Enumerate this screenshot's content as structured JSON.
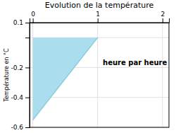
{
  "chart_data": {
    "type": "area",
    "title": "Evolution de la température",
    "ylabel": "Température en °C",
    "annotation": {
      "text": "heure par heure",
      "x": 1.08,
      "y": -0.17
    },
    "series": [
      {
        "type": "area",
        "color": "#aaddee",
        "x": [
          0,
          0,
          1,
          0
        ],
        "values": [
          0,
          -0.55,
          0,
          0
        ]
      },
      {
        "type": "line",
        "color": "#88ccdd",
        "x": [
          0,
          1
        ],
        "values": [
          -0.55,
          0
        ]
      }
    ],
    "xlim": [
      -0.05,
      2.1
    ],
    "ylim": [
      -0.6,
      0.1
    ],
    "xticks": [
      0,
      1,
      2
    ],
    "yticks": [
      -0.6,
      -0.4,
      -0.2,
      {
        "value": 0.0,
        "label": null
      },
      0.1
    ],
    "grid": true
  }
}
